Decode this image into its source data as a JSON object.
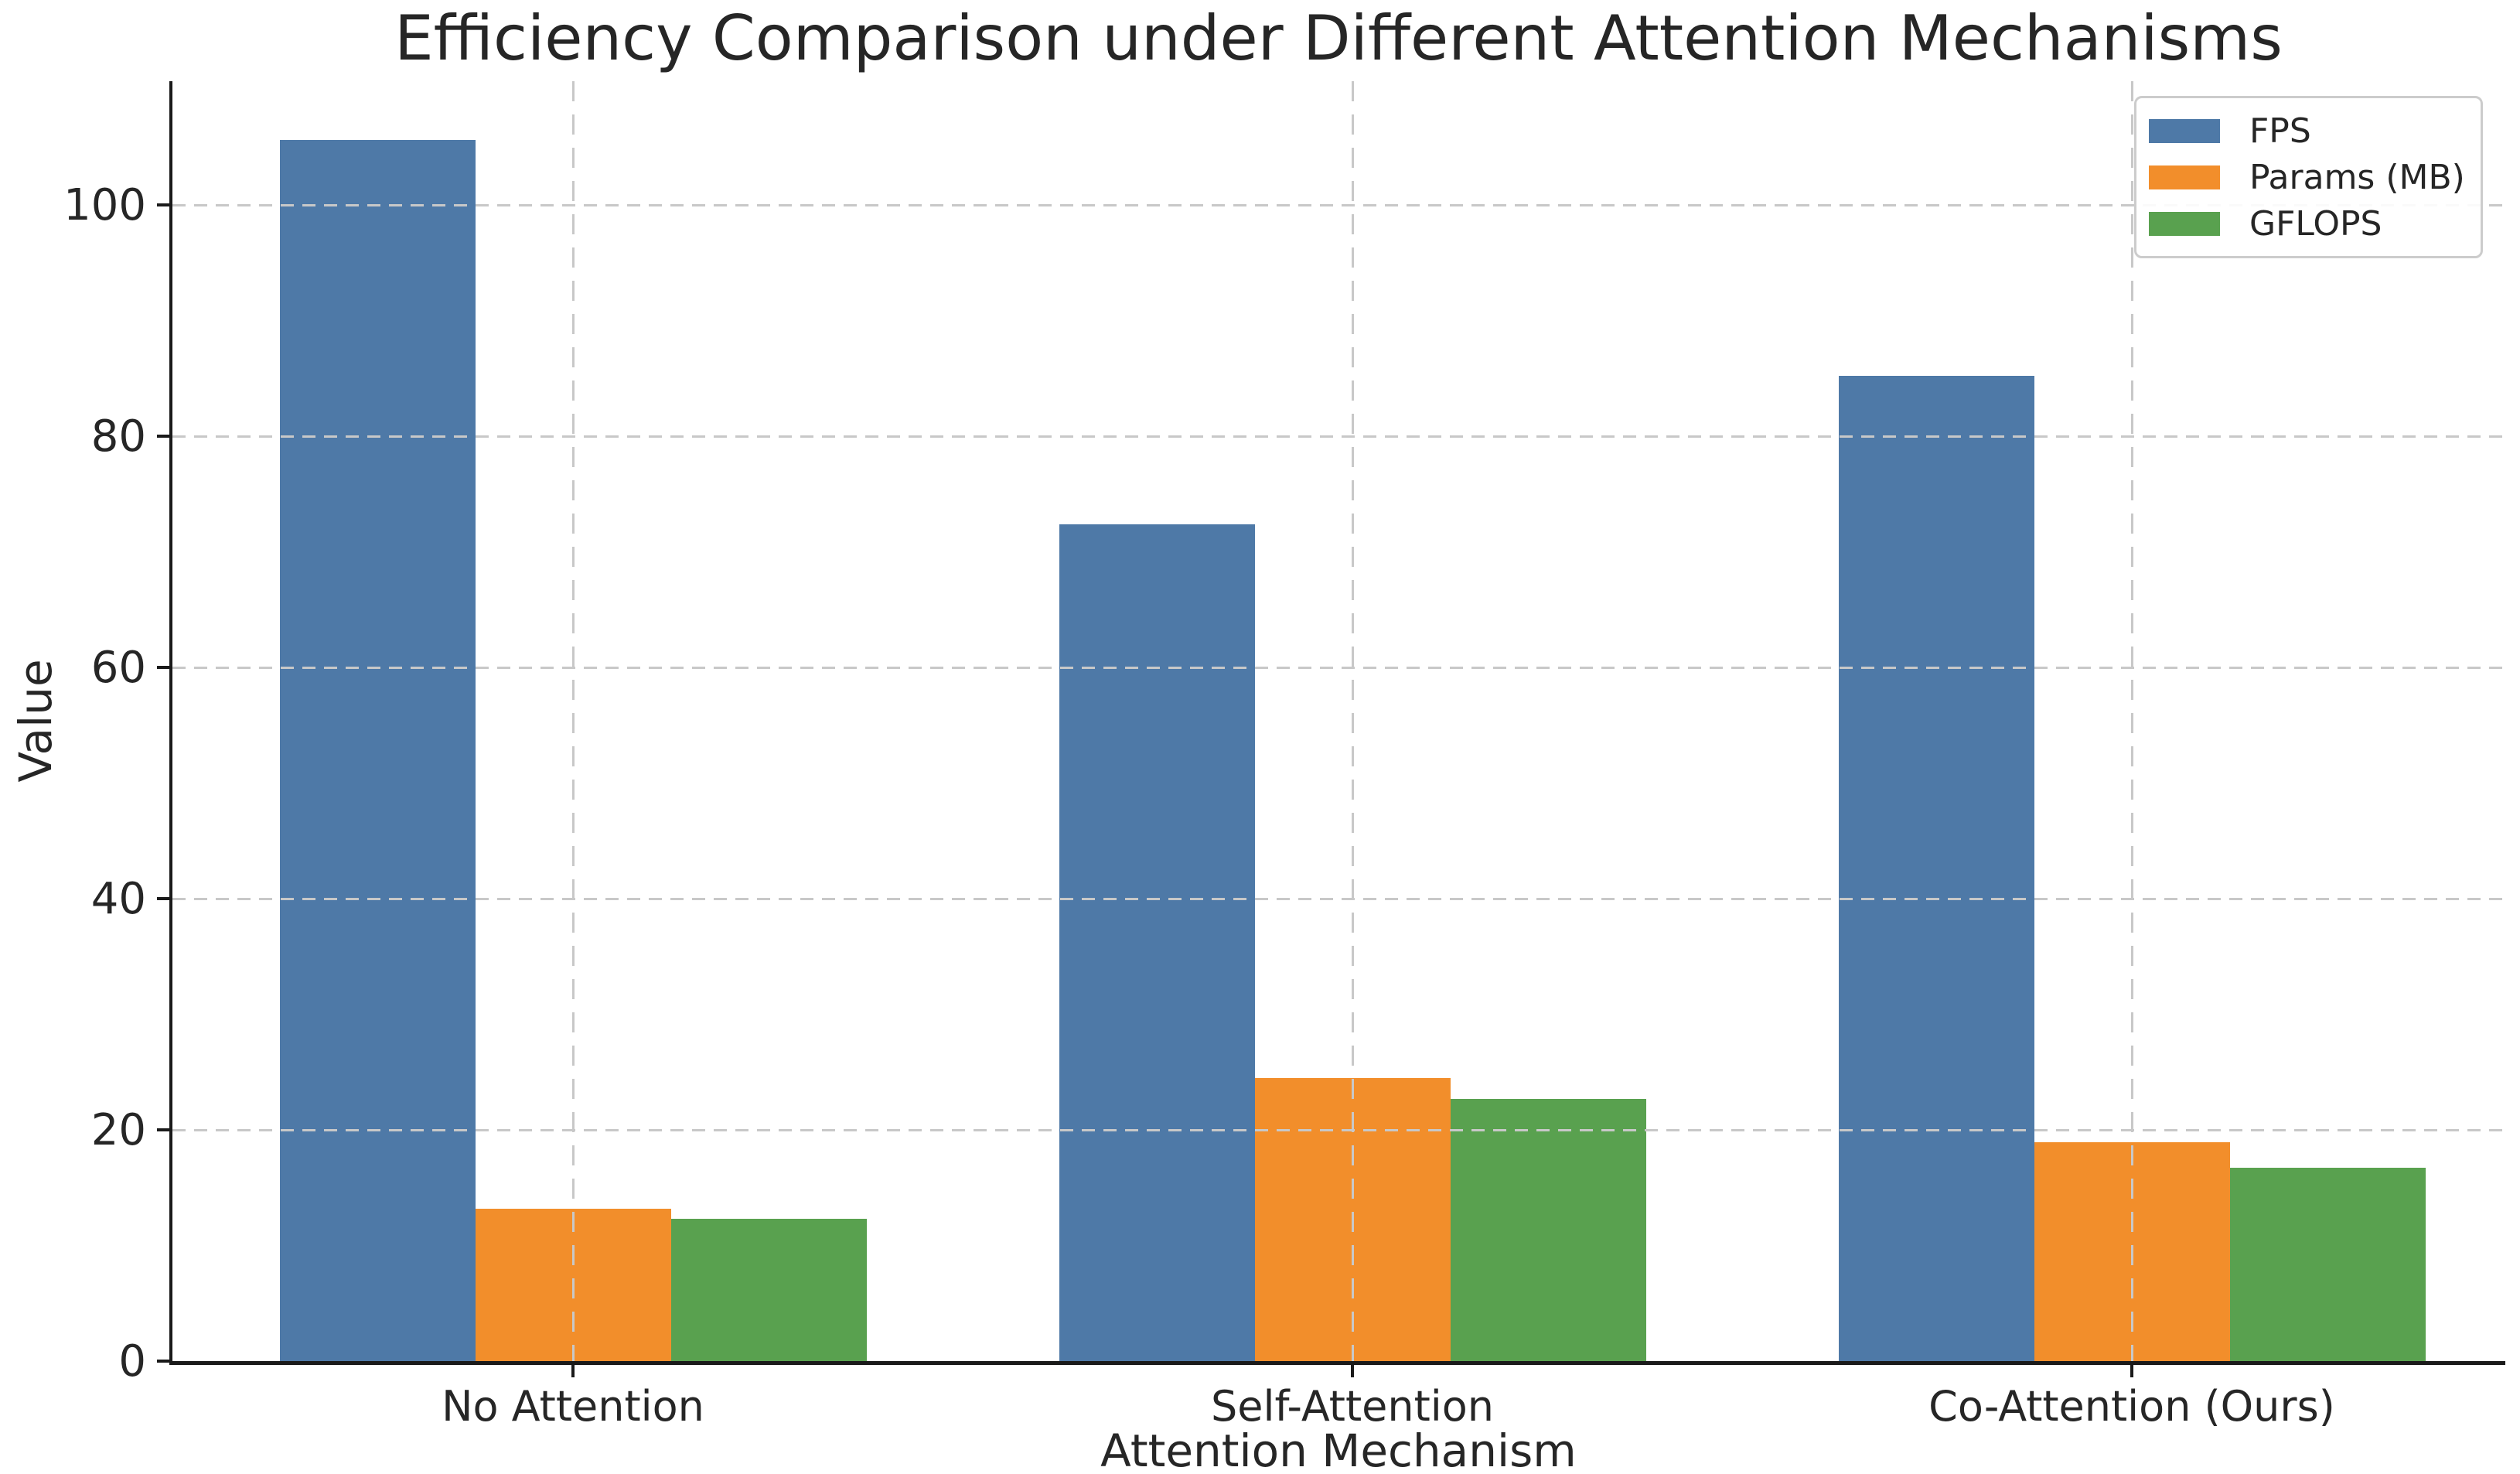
{
  "chart_data": {
    "type": "bar",
    "title": "Efficiency Comparison under Different Attention Mechanisms",
    "xlabel": "Attention Mechanism",
    "ylabel": "Value",
    "categories": [
      "No Attention",
      "Self-Attention",
      "Co-Attention (Ours)"
    ],
    "series": [
      {
        "name": "FPS",
        "color": "#4E79A7",
        "values": [
          105.6,
          72.4,
          85.2
        ]
      },
      {
        "name": "Params (MB)",
        "color": "#F28E2B",
        "values": [
          13.2,
          24.5,
          18.9
        ]
      },
      {
        "name": "GFLOPS",
        "color": "#59A14F",
        "values": [
          12.3,
          22.7,
          16.7
        ]
      }
    ],
    "yticks": [
      0,
      20,
      40,
      60,
      80,
      100
    ],
    "ylim": [
      0,
      110.7
    ],
    "grid": true,
    "grid_color": "#c8c8c8",
    "legend": {
      "position": "upper right",
      "entries": [
        "FPS",
        "Params (MB)",
        "GFLOPS"
      ]
    },
    "text_color": "#262626",
    "spine_color": "#1a1a1a"
  }
}
